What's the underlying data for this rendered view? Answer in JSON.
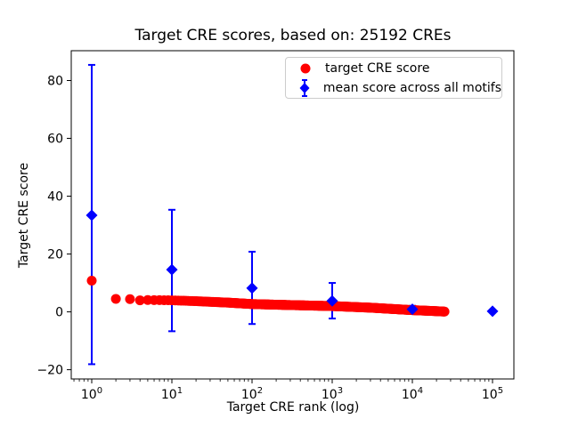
{
  "chart_data": {
    "type": "scatter",
    "title": "Target CRE scores, based on: 25192 CREs",
    "xlabel": "Target CRE rank (log)",
    "ylabel": "Target CRE score",
    "x_scale": "log",
    "x_tick_exponents": [
      0,
      1,
      2,
      3,
      4,
      5
    ],
    "y_ticks": [
      -20,
      0,
      20,
      40,
      60,
      80
    ],
    "xlim_log10": [
      -0.2556,
      5.2667
    ],
    "ylim": [
      -23.2,
      90.3
    ],
    "n_cres": 25192,
    "grid": false,
    "legend_position": "upper right",
    "series": [
      {
        "name": "target CRE score",
        "color": "#ff0000",
        "marker": "circle",
        "n_points": 25192,
        "points_sampled": [
          [
            1,
            10.8
          ],
          [
            2,
            4.5
          ],
          [
            3,
            4.4
          ],
          [
            4,
            4.0
          ],
          [
            5,
            4.1
          ],
          [
            7,
            4.05
          ],
          [
            10,
            4.0
          ],
          [
            20,
            3.7
          ],
          [
            50,
            3.2
          ],
          [
            100,
            2.7
          ],
          [
            300,
            2.35
          ],
          [
            1000,
            2.0
          ],
          [
            3000,
            1.45
          ],
          [
            10000,
            0.6
          ],
          [
            18000,
            0.3
          ],
          [
            25192,
            0.1
          ]
        ],
        "trail": {
          "from_rank": 2,
          "to_rank": 25192
        }
      },
      {
        "name": "mean score across all motifs",
        "color": "#0000ff",
        "marker": "diamond",
        "points": [
          {
            "x": 1,
            "y": 33.4,
            "err": [
              51.5,
              52.0
            ]
          },
          {
            "x": 10,
            "y": 14.6,
            "err": [
              21.3,
              20.7
            ]
          },
          {
            "x": 100,
            "y": 8.2,
            "err": [
              12.4,
              12.6
            ]
          },
          {
            "x": 1000,
            "y": 3.8,
            "err": [
              6.1,
              6.2
            ]
          },
          {
            "x": 10000,
            "y": 0.9,
            "err": [
              1.2,
              1.2
            ]
          },
          {
            "x": 100000,
            "y": 0.2,
            "err": [
              0.3,
              0.3
            ]
          }
        ]
      }
    ]
  }
}
